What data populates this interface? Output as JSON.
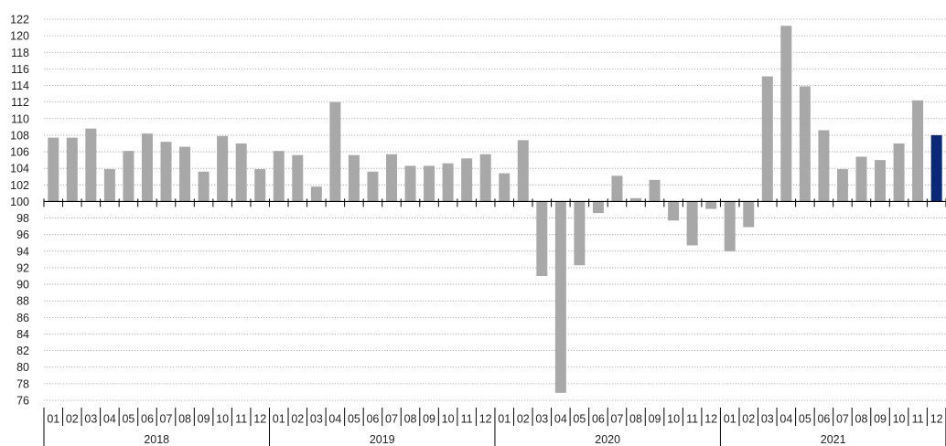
{
  "chart_data": {
    "type": "bar",
    "baseline": 100,
    "ylim": [
      76,
      122
    ],
    "ytick_step": 2,
    "grid": true,
    "colors": {
      "bar": "#a8a8a8",
      "highlight": "#0b2878",
      "grid": "#9a9a9a",
      "axis": "#000000"
    },
    "years": [
      "2018",
      "2019",
      "2020",
      "2021"
    ],
    "months": [
      "01",
      "02",
      "03",
      "04",
      "05",
      "06",
      "07",
      "08",
      "09",
      "10",
      "11",
      "12"
    ],
    "series": [
      {
        "values": [
          107.7,
          107.7,
          108.8,
          103.9,
          106.1,
          108.2,
          107.2,
          106.6,
          103.6,
          107.9,
          107.0,
          103.9,
          106.1,
          105.6,
          101.8,
          112.0,
          105.6,
          103.6,
          105.7,
          104.3,
          104.3,
          104.6,
          105.2,
          105.7,
          103.4,
          107.4,
          91.0,
          76.9,
          92.3,
          98.6,
          103.1,
          100.4,
          102.6,
          97.7,
          94.7,
          99.1,
          94.0,
          96.9,
          115.1,
          121.2,
          113.9,
          108.6,
          103.9,
          105.4,
          105.0,
          107.0,
          112.2,
          108.0
        ],
        "highlight_index": 47
      }
    ]
  }
}
